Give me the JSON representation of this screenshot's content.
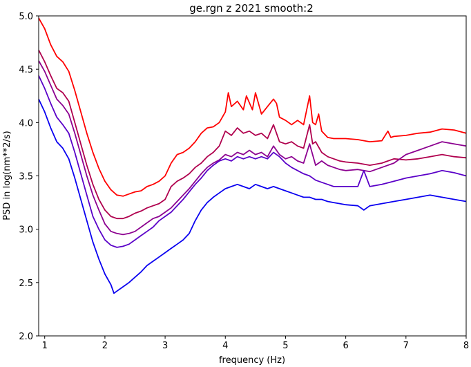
{
  "chart_data": {
    "type": "line",
    "title": "ge.rgn z 2021 smooth:2",
    "xlabel": "frequency (Hz)",
    "ylabel": "PSD in log(nm**2/s)",
    "xlim": [
      0.9,
      8.0
    ],
    "ylim": [
      2.0,
      5.0
    ],
    "xticks": [
      1,
      2,
      3,
      4,
      5,
      6,
      7,
      8
    ],
    "yticks": [
      2.0,
      2.5,
      3.0,
      3.5,
      4.0,
      4.5,
      5.0
    ],
    "xtick_labels": [
      "1",
      "2",
      "3",
      "4",
      "5",
      "6",
      "7",
      "8"
    ],
    "ytick_labels": [
      "2.0",
      "2.5",
      "3.0",
      "3.5",
      "4.0",
      "4.5",
      "5.0"
    ],
    "grid": false,
    "legend": "none",
    "series": [
      {
        "color": "#ff0000",
        "x": [
          0.9,
          1.0,
          1.1,
          1.2,
          1.3,
          1.4,
          1.5,
          1.6,
          1.7,
          1.8,
          1.9,
          2.0,
          2.1,
          2.2,
          2.3,
          2.4,
          2.5,
          2.6,
          2.7,
          2.8,
          2.9,
          3.0,
          3.1,
          3.2,
          3.3,
          3.4,
          3.5,
          3.6,
          3.7,
          3.8,
          3.9,
          4.0,
          4.05,
          4.1,
          4.2,
          4.3,
          4.35,
          4.45,
          4.5,
          4.6,
          4.7,
          4.8,
          4.85,
          4.9,
          5.0,
          5.1,
          5.2,
          5.3,
          5.4,
          5.45,
          5.5,
          5.55,
          5.6,
          5.7,
          5.8,
          5.9,
          6.0,
          6.2,
          6.4,
          6.6,
          6.7,
          6.75,
          6.8,
          7.0,
          7.2,
          7.4,
          7.6,
          7.8,
          8.0
        ],
        "y": [
          4.98,
          4.88,
          4.73,
          4.62,
          4.57,
          4.48,
          4.3,
          4.1,
          3.9,
          3.72,
          3.57,
          3.45,
          3.37,
          3.32,
          3.31,
          3.33,
          3.35,
          3.36,
          3.4,
          3.42,
          3.45,
          3.5,
          3.62,
          3.7,
          3.72,
          3.76,
          3.82,
          3.9,
          3.95,
          3.96,
          4.0,
          4.1,
          4.28,
          4.15,
          4.2,
          4.12,
          4.25,
          4.12,
          4.28,
          4.08,
          4.15,
          4.22,
          4.18,
          4.05,
          4.02,
          3.98,
          4.02,
          3.98,
          4.25,
          4.0,
          3.98,
          4.08,
          3.92,
          3.86,
          3.85,
          3.85,
          3.85,
          3.84,
          3.82,
          3.83,
          3.92,
          3.86,
          3.87,
          3.88,
          3.9,
          3.91,
          3.94,
          3.93,
          3.9
        ]
      },
      {
        "color": "#b0004e",
        "x": [
          0.9,
          1.0,
          1.1,
          1.2,
          1.3,
          1.4,
          1.5,
          1.6,
          1.7,
          1.8,
          1.9,
          2.0,
          2.1,
          2.2,
          2.3,
          2.4,
          2.5,
          2.6,
          2.7,
          2.8,
          2.9,
          3.0,
          3.1,
          3.2,
          3.3,
          3.4,
          3.5,
          3.6,
          3.7,
          3.8,
          3.9,
          4.0,
          4.1,
          4.2,
          4.3,
          4.4,
          4.5,
          4.6,
          4.7,
          4.8,
          4.9,
          5.0,
          5.1,
          5.2,
          5.3,
          5.4,
          5.45,
          5.5,
          5.6,
          5.7,
          5.8,
          5.9,
          6.0,
          6.2,
          6.4,
          6.6,
          6.7,
          6.8,
          7.0,
          7.2,
          7.4,
          7.6,
          7.8,
          8.0
        ],
        "y": [
          4.68,
          4.57,
          4.44,
          4.32,
          4.28,
          4.2,
          4.0,
          3.8,
          3.6,
          3.42,
          3.28,
          3.18,
          3.12,
          3.1,
          3.1,
          3.12,
          3.15,
          3.17,
          3.2,
          3.22,
          3.24,
          3.28,
          3.4,
          3.45,
          3.48,
          3.52,
          3.58,
          3.62,
          3.68,
          3.72,
          3.78,
          3.92,
          3.88,
          3.95,
          3.9,
          3.92,
          3.88,
          3.9,
          3.85,
          3.98,
          3.82,
          3.8,
          3.82,
          3.78,
          3.76,
          3.98,
          3.8,
          3.82,
          3.72,
          3.68,
          3.66,
          3.64,
          3.63,
          3.62,
          3.6,
          3.62,
          3.64,
          3.66,
          3.65,
          3.66,
          3.68,
          3.7,
          3.68,
          3.67
        ]
      },
      {
        "color": "#8c0090",
        "x": [
          0.9,
          1.0,
          1.1,
          1.2,
          1.3,
          1.4,
          1.5,
          1.6,
          1.7,
          1.8,
          1.9,
          2.0,
          2.1,
          2.2,
          2.3,
          2.4,
          2.5,
          2.6,
          2.7,
          2.8,
          2.9,
          3.0,
          3.1,
          3.2,
          3.3,
          3.4,
          3.5,
          3.6,
          3.7,
          3.8,
          3.9,
          4.0,
          4.1,
          4.2,
          4.3,
          4.4,
          4.5,
          4.6,
          4.7,
          4.8,
          4.9,
          5.0,
          5.1,
          5.2,
          5.3,
          5.4,
          5.5,
          5.6,
          5.7,
          5.8,
          5.9,
          6.0,
          6.2,
          6.4,
          6.6,
          6.8,
          7.0,
          7.2,
          7.4,
          7.6,
          7.8,
          8.0
        ],
        "y": [
          4.58,
          4.48,
          4.35,
          4.22,
          4.16,
          4.08,
          3.9,
          3.7,
          3.5,
          3.32,
          3.18,
          3.05,
          2.98,
          2.96,
          2.95,
          2.96,
          2.98,
          3.02,
          3.06,
          3.1,
          3.12,
          3.16,
          3.2,
          3.26,
          3.32,
          3.38,
          3.45,
          3.52,
          3.58,
          3.62,
          3.65,
          3.7,
          3.68,
          3.72,
          3.7,
          3.74,
          3.7,
          3.72,
          3.68,
          3.78,
          3.7,
          3.66,
          3.68,
          3.64,
          3.62,
          3.8,
          3.6,
          3.64,
          3.6,
          3.58,
          3.56,
          3.55,
          3.56,
          3.54,
          3.58,
          3.62,
          3.7,
          3.74,
          3.78,
          3.82,
          3.8,
          3.78
        ]
      },
      {
        "color": "#5a00c8",
        "x": [
          0.9,
          1.0,
          1.1,
          1.2,
          1.3,
          1.4,
          1.5,
          1.6,
          1.7,
          1.8,
          1.9,
          2.0,
          2.1,
          2.2,
          2.3,
          2.4,
          2.5,
          2.6,
          2.7,
          2.8,
          2.9,
          3.0,
          3.1,
          3.2,
          3.3,
          3.4,
          3.5,
          3.6,
          3.7,
          3.8,
          3.9,
          4.0,
          4.1,
          4.2,
          4.3,
          4.4,
          4.5,
          4.6,
          4.7,
          4.8,
          4.9,
          5.0,
          5.1,
          5.2,
          5.3,
          5.4,
          5.5,
          5.6,
          5.7,
          5.8,
          5.9,
          6.0,
          6.2,
          6.3,
          6.4,
          6.6,
          6.8,
          7.0,
          7.2,
          7.4,
          7.6,
          7.8,
          8.0
        ],
        "y": [
          4.44,
          4.32,
          4.18,
          4.05,
          3.98,
          3.9,
          3.72,
          3.52,
          3.32,
          3.12,
          3.0,
          2.9,
          2.85,
          2.83,
          2.84,
          2.86,
          2.9,
          2.94,
          2.98,
          3.02,
          3.08,
          3.12,
          3.16,
          3.22,
          3.28,
          3.35,
          3.42,
          3.48,
          3.55,
          3.6,
          3.64,
          3.66,
          3.64,
          3.68,
          3.66,
          3.68,
          3.66,
          3.68,
          3.66,
          3.72,
          3.68,
          3.62,
          3.58,
          3.55,
          3.52,
          3.5,
          3.46,
          3.44,
          3.42,
          3.4,
          3.4,
          3.4,
          3.4,
          3.55,
          3.4,
          3.42,
          3.45,
          3.48,
          3.5,
          3.52,
          3.55,
          3.53,
          3.5
        ]
      },
      {
        "color": "#0a00f0",
        "x": [
          0.9,
          1.0,
          1.1,
          1.2,
          1.3,
          1.4,
          1.5,
          1.6,
          1.7,
          1.8,
          1.9,
          2.0,
          2.1,
          2.15,
          2.2,
          2.3,
          2.4,
          2.5,
          2.6,
          2.7,
          2.8,
          2.9,
          3.0,
          3.1,
          3.2,
          3.3,
          3.4,
          3.5,
          3.6,
          3.7,
          3.8,
          3.9,
          4.0,
          4.1,
          4.2,
          4.3,
          4.4,
          4.5,
          4.6,
          4.7,
          4.8,
          4.9,
          5.0,
          5.1,
          5.2,
          5.3,
          5.4,
          5.5,
          5.6,
          5.7,
          5.8,
          5.9,
          6.0,
          6.2,
          6.3,
          6.4,
          6.6,
          6.8,
          7.0,
          7.2,
          7.4,
          7.6,
          7.8,
          8.0
        ],
        "y": [
          4.22,
          4.1,
          3.95,
          3.82,
          3.76,
          3.66,
          3.48,
          3.28,
          3.08,
          2.88,
          2.72,
          2.58,
          2.48,
          2.4,
          2.42,
          2.46,
          2.5,
          2.55,
          2.6,
          2.66,
          2.7,
          2.74,
          2.78,
          2.82,
          2.86,
          2.9,
          2.96,
          3.08,
          3.18,
          3.25,
          3.3,
          3.34,
          3.38,
          3.4,
          3.42,
          3.4,
          3.38,
          3.42,
          3.4,
          3.38,
          3.4,
          3.38,
          3.36,
          3.34,
          3.32,
          3.3,
          3.3,
          3.28,
          3.28,
          3.26,
          3.25,
          3.24,
          3.23,
          3.22,
          3.18,
          3.22,
          3.24,
          3.26,
          3.28,
          3.3,
          3.32,
          3.3,
          3.28,
          3.26
        ]
      }
    ]
  }
}
